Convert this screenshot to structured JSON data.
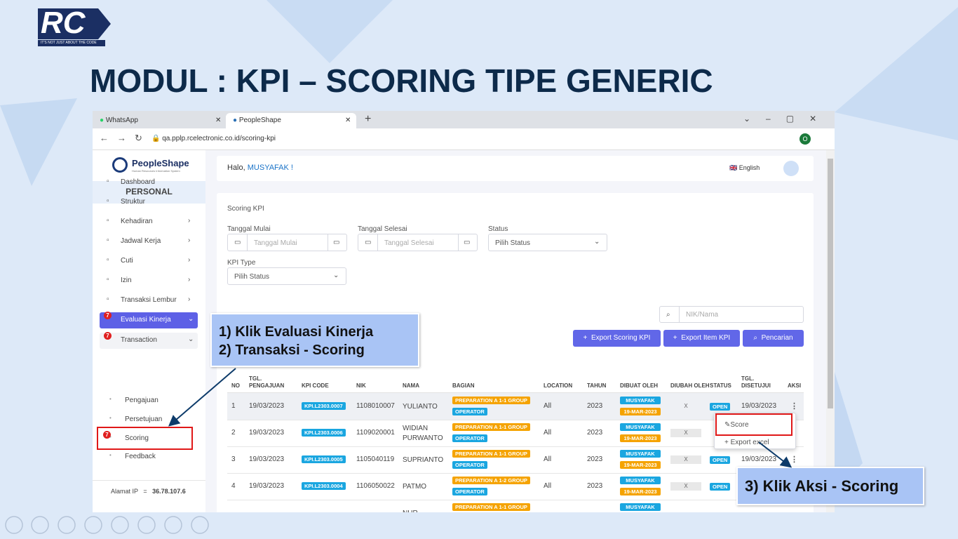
{
  "slide": {
    "logo": "RC",
    "logo_tagline": "IT'S NOT JUST ABOUT THE CODE",
    "title": "MODUL : KPI – SCORING TIPE GENERIC"
  },
  "browser": {
    "tabs": [
      "WhatsApp",
      "PeopleShape"
    ],
    "url": "qa.pplp.rcelectronic.co.id/scoring-kpi",
    "profile": "O"
  },
  "sidebar": {
    "brand": "PeopleShape",
    "brand_sub": "Human Resources Information System",
    "section": "PERSONAL",
    "menu": [
      {
        "label": "Dashboard"
      },
      {
        "label": "Struktur"
      },
      {
        "label": "Kehadiran",
        "expandable": true
      },
      {
        "label": "Jadwal Kerja",
        "expandable": true
      },
      {
        "label": "Cuti",
        "expandable": true
      },
      {
        "label": "Izin",
        "expandable": true
      },
      {
        "label": "Transaksi Lembur",
        "expandable": true
      },
      {
        "label": "Evaluasi Kinerja",
        "expandable": true,
        "active": true,
        "badge": 7
      },
      {
        "label": "Transaction",
        "expandable": true,
        "badge": 7
      }
    ],
    "submenu": [
      {
        "label": "Pengajuan"
      },
      {
        "label": "Persetujuan"
      },
      {
        "label": "Scoring",
        "badge": 7
      },
      {
        "label": "Feedback"
      }
    ],
    "ip_label": "Alamat IP",
    "ip_sep": "=",
    "ip": "36.78.107.6"
  },
  "header": {
    "greeting": "Halo,",
    "user": "MUSYAFAK !",
    "language": "English"
  },
  "filter": {
    "heading": "Scoring KPI",
    "start_label": "Tanggal Mulai",
    "start_placeholder": "Tanggal Mulai",
    "end_label": "Tanggal Selesai",
    "end_placeholder": "Tanggal Selesai",
    "status_label": "Status",
    "status_placeholder": "Pilih Status",
    "type_label": "KPI Type",
    "type_placeholder": "Pilih Status",
    "search_placeholder": "NIK/Nama",
    "buttons": [
      "Export Scoring KPI",
      "Export Item KPI",
      "Pencarian"
    ]
  },
  "table": {
    "headers": [
      "NO",
      "TGL. PENGAJUAN",
      "KPI CODE",
      "NIK",
      "NAMA",
      "BAGIAN",
      "LOCATION",
      "TAHUN",
      "DIBUAT OLEH",
      "DIUBAH OLEH",
      "STATUS",
      "TGL. DISETUJUI",
      "AKSI"
    ],
    "rows": [
      {
        "no": 1,
        "tgl": "19/03/2023",
        "kpi": "KPI.L2303.0007",
        "nik": "1108010007",
        "nama": "YULIANTO",
        "bagian": "PREPARATION A 1-1 GROUP",
        "jabatan": "OPERATOR",
        "location": "All",
        "tahun": 2023,
        "dibuat": "MUSYAFAK",
        "dibuat_tgl": "19-MAR-2023",
        "diubah": "X",
        "status": "OPEN",
        "disetujui": "19/03/2023"
      },
      {
        "no": 2,
        "tgl": "19/03/2023",
        "kpi": "KPI.L2303.0006",
        "nik": "1109020001",
        "nama": "WIDIAN PURWANTO",
        "bagian": "PREPARATION A 1-1 GROUP",
        "jabatan": "OPERATOR",
        "location": "All",
        "tahun": 2023,
        "dibuat": "MUSYAFAK",
        "dibuat_tgl": "19-MAR-2023",
        "diubah": "X"
      },
      {
        "no": 3,
        "tgl": "19/03/2023",
        "kpi": "KPI.L2303.0005",
        "nik": "1105040119",
        "nama": "SUPRIANTO",
        "bagian": "PREPARATION A 1-1 GROUP",
        "jabatan": "OPERATOR",
        "location": "All",
        "tahun": 2023,
        "dibuat": "MUSYAFAK",
        "dibuat_tgl": "19-MAR-2023",
        "diubah": "X",
        "status": "OPEN",
        "disetujui": "19/03/2023"
      },
      {
        "no": 4,
        "tgl": "19/03/2023",
        "kpi": "KPI.L2303.0004",
        "nik": "1106050022",
        "nama": "PATMO",
        "bagian": "PREPARATION A 1-2 GROUP",
        "jabatan": "OPERATOR",
        "location": "All",
        "tahun": 2023,
        "dibuat": "MUSYAFAK",
        "dibuat_tgl": "19-MAR-2023",
        "diubah": "X",
        "status": "OPEN"
      },
      {
        "nama": "NUR",
        "bagian": "PREPARATION A 1-1 GROUP",
        "dibuat": "MUSYAFAK"
      }
    ]
  },
  "popup": {
    "items": [
      "Score",
      "+ Export excel"
    ]
  },
  "callouts": {
    "first": [
      "1) Klik Evaluasi Kinerja",
      "2) Transaksi - Scoring"
    ],
    "second": "3) Klik Aksi - Scoring"
  }
}
